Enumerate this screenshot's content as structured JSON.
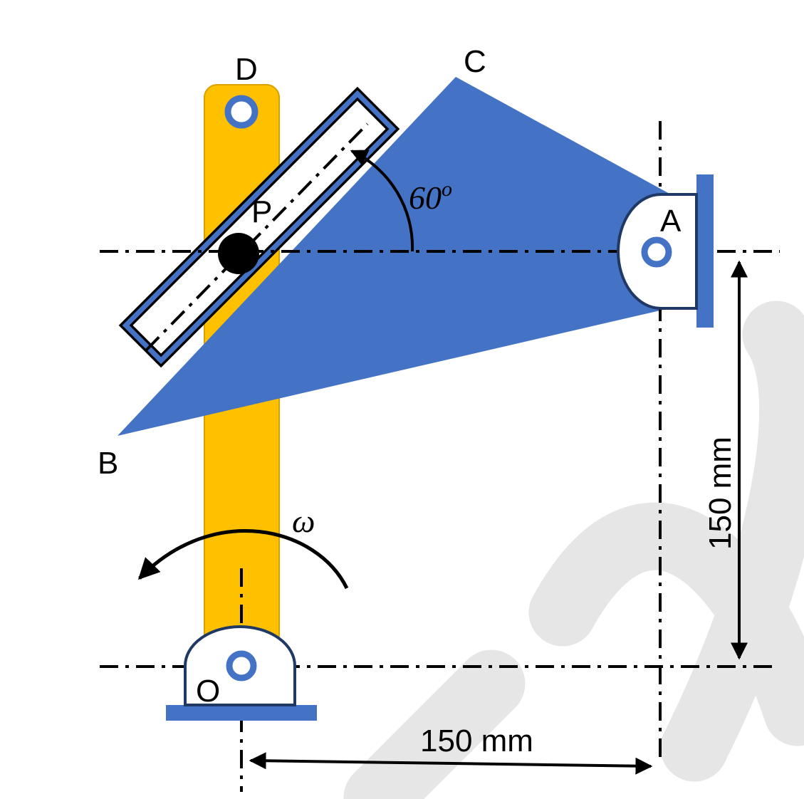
{
  "labels": {
    "point_a": "A",
    "point_b": "B",
    "point_c": "C",
    "point_d": "D",
    "point_o": "O",
    "point_p": "P",
    "angle_value": "60",
    "angle_unit": "o",
    "omega": "ω",
    "vertical_dimension": "150 mm",
    "horizontal_dimension": "150 mm"
  },
  "colors": {
    "link_blue": "#4472C4",
    "crank_yellow": "#FFC000",
    "crank_outline": "#D9A000",
    "outline_dark": "#1F3864",
    "pin_black": "#000000",
    "watermark_gray": "#E6E6E6"
  }
}
